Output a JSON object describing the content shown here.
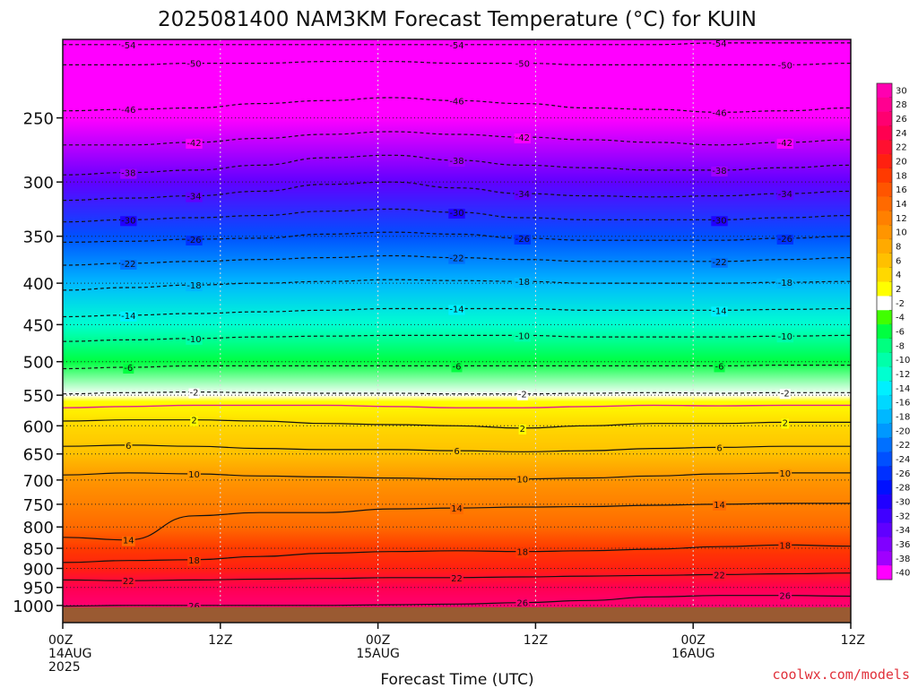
{
  "chart_data": {
    "type": "heatmap",
    "title": "2025081400 NAM3KM Forecast Temperature (°C) for KUIN",
    "xlabel": "Forecast Time (UTC)",
    "ylabel": "",
    "credit": "coolwx.com/models",
    "y_scale": "log",
    "ylim": [
      1050,
      200
    ],
    "y_ticks": [
      250,
      300,
      350,
      400,
      450,
      500,
      550,
      600,
      650,
      700,
      750,
      800,
      850,
      900,
      950,
      1000
    ],
    "x_range_hours": [
      0,
      60
    ],
    "x_ticks": [
      {
        "hour": 0,
        "line1": "00Z",
        "line2": "14AUG",
        "line3": "2025"
      },
      {
        "hour": 12,
        "line1": "12Z",
        "line2": "",
        "line3": ""
      },
      {
        "hour": 24,
        "line1": "00Z",
        "line2": "15AUG",
        "line3": ""
      },
      {
        "hour": 36,
        "line1": "12Z",
        "line2": "",
        "line3": ""
      },
      {
        "hour": 48,
        "line1": "00Z",
        "line2": "16AUG",
        "line3": ""
      },
      {
        "hour": 60,
        "line1": "12Z",
        "line2": "",
        "line3": ""
      }
    ],
    "surface_pressure_hpa": 1005,
    "colors": {
      "ground": "#9a5a32",
      "zero_line": "#e02090",
      "contour": "#111111",
      "credit": "#e0303a"
    },
    "colorbar": {
      "labels": [
        "30",
        "28",
        "26",
        "24",
        "22",
        "20",
        "18",
        "16",
        "14",
        "12",
        "10",
        "8",
        "6",
        "4",
        "2",
        "-2",
        "-4",
        "-6",
        "-8",
        "-10",
        "-12",
        "-14",
        "-16",
        "-18",
        "-20",
        "-22",
        "-24",
        "-26",
        "-28",
        "-30",
        "-32",
        "-34",
        "-36",
        "-38",
        "-40"
      ],
      "colors": [
        "#ff00b0",
        "#ff0090",
        "#ff0070",
        "#ff0050",
        "#ff1030",
        "#ff2010",
        "#ff3a00",
        "#ff5500",
        "#ff6a00",
        "#ff8000",
        "#ff9500",
        "#ffaa00",
        "#ffc000",
        "#ffd800",
        "#ffff00",
        "#ffffff",
        "#40ff00",
        "#00ff40",
        "#00ff80",
        "#00ffaa",
        "#00ffd0",
        "#00f0ff",
        "#00d8ff",
        "#00b8ff",
        "#0098ff",
        "#0070ff",
        "#0050ff",
        "#0030ff",
        "#0010ff",
        "#2000ff",
        "#4000ff",
        "#6000ff",
        "#8000ff",
        "#a000ff",
        "#ff00ff"
      ]
    },
    "temperature_profile": [
      {
        "p": 1000,
        "t": 26
      },
      {
        "p": 950,
        "t": 23
      },
      {
        "p": 900,
        "t": 20
      },
      {
        "p": 850,
        "t": 17
      },
      {
        "p": 800,
        "t": 14
      },
      {
        "p": 750,
        "t": 12
      },
      {
        "p": 700,
        "t": 9
      },
      {
        "p": 650,
        "t": 6
      },
      {
        "p": 600,
        "t": 3
      },
      {
        "p": 560,
        "t": 0
      },
      {
        "p": 550,
        "t": -1
      },
      {
        "p": 500,
        "t": -6
      },
      {
        "p": 450,
        "t": -12
      },
      {
        "p": 400,
        "t": -18
      },
      {
        "p": 350,
        "t": -25
      },
      {
        "p": 300,
        "t": -35
      },
      {
        "p": 250,
        "t": -45
      },
      {
        "p": 200,
        "t": -55
      }
    ],
    "contours": [
      {
        "label": "-54",
        "type": "dashed",
        "p": [
          203,
          203,
          203,
          203,
          203,
          203,
          203,
          203,
          203,
          203,
          202,
          202,
          202
        ]
      },
      {
        "label": "-50",
        "type": "dashed",
        "p": [
          215,
          215,
          214,
          214,
          213,
          213,
          214,
          214,
          215,
          215,
          215,
          215,
          214
        ]
      },
      {
        "label": "-46",
        "type": "dashed",
        "p": [
          245,
          244,
          243,
          240,
          238,
          236,
          238,
          240,
          243,
          244,
          246,
          245,
          243
        ]
      },
      {
        "label": "-42",
        "type": "dashed",
        "p": [
          270,
          270,
          268,
          265,
          262,
          260,
          262,
          264,
          266,
          268,
          270,
          268,
          266
        ]
      },
      {
        "label": "-38",
        "type": "dashed",
        "p": [
          294,
          292,
          290,
          286,
          280,
          278,
          282,
          286,
          288,
          290,
          290,
          288,
          286
        ]
      },
      {
        "label": "-34",
        "type": "dashed",
        "p": [
          316,
          314,
          312,
          308,
          302,
          300,
          305,
          310,
          312,
          313,
          312,
          310,
          308
        ]
      },
      {
        "label": "-30",
        "type": "dashed",
        "p": [
          336,
          334,
          332,
          330,
          326,
          324,
          327,
          332,
          334,
          334,
          334,
          332,
          330
        ]
      },
      {
        "label": "-26",
        "type": "dashed",
        "p": [
          356,
          355,
          353,
          352,
          348,
          346,
          348,
          352,
          354,
          354,
          354,
          352,
          350
        ]
      },
      {
        "label": "-22",
        "type": "dashed",
        "p": [
          380,
          378,
          376,
          374,
          372,
          370,
          372,
          374,
          376,
          376,
          376,
          374,
          372
        ]
      },
      {
        "label": "-18",
        "type": "dashed",
        "p": [
          408,
          405,
          402,
          400,
          398,
          396,
          397,
          398,
          400,
          400,
          400,
          399,
          398
        ]
      },
      {
        "label": "-14",
        "type": "dashed",
        "p": [
          440,
          438,
          436,
          434,
          432,
          430,
          430,
          430,
          432,
          432,
          432,
          431,
          430
        ]
      },
      {
        "label": "-10",
        "type": "dashed",
        "p": [
          472,
          470,
          468,
          466,
          465,
          464,
          464,
          464,
          466,
          466,
          466,
          465,
          464
        ]
      },
      {
        "label": "-6",
        "type": "dashed",
        "p": [
          510,
          508,
          506,
          506,
          506,
          506,
          506,
          506,
          506,
          506,
          506,
          505,
          505
        ]
      },
      {
        "label": "-2",
        "type": "dashed",
        "p": [
          548,
          546,
          545,
          546,
          547,
          547,
          548,
          548,
          547,
          546,
          547,
          546,
          546
        ]
      },
      {
        "label": "",
        "type": "zero",
        "p": [
          570,
          568,
          566,
          566,
          566,
          568,
          570,
          570,
          568,
          566,
          567,
          566,
          566
        ]
      },
      {
        "label": "2",
        "type": "solid",
        "p": [
          592,
          590,
          590,
          592,
          596,
          598,
          600,
          604,
          600,
          596,
          596,
          594,
          594
        ]
      },
      {
        "label": "6",
        "type": "solid",
        "p": [
          636,
          634,
          636,
          640,
          642,
          642,
          644,
          646,
          644,
          640,
          638,
          636,
          636
        ]
      },
      {
        "label": "10",
        "type": "solid",
        "p": [
          690,
          686,
          688,
          692,
          694,
          696,
          698,
          698,
          696,
          692,
          688,
          686,
          686
        ]
      },
      {
        "label": "14",
        "type": "solid",
        "p": [
          824,
          830,
          775,
          768,
          768,
          760,
          758,
          756,
          755,
          752,
          750,
          748,
          748
        ]
      },
      {
        "label": "18",
        "type": "solid",
        "p": [
          885,
          880,
          878,
          870,
          862,
          858,
          856,
          858,
          856,
          852,
          846,
          842,
          845
        ]
      },
      {
        "label": "22",
        "type": "solid",
        "p": [
          930,
          932,
          930,
          928,
          926,
          924,
          924,
          922,
          920,
          918,
          916,
          914,
          912
        ]
      },
      {
        "label": "26",
        "type": "solid",
        "p": [
          1002,
          1000,
          1000,
          1000,
          1000,
          998,
          996,
          992,
          986,
          976,
          972,
          972,
          974
        ]
      }
    ]
  }
}
